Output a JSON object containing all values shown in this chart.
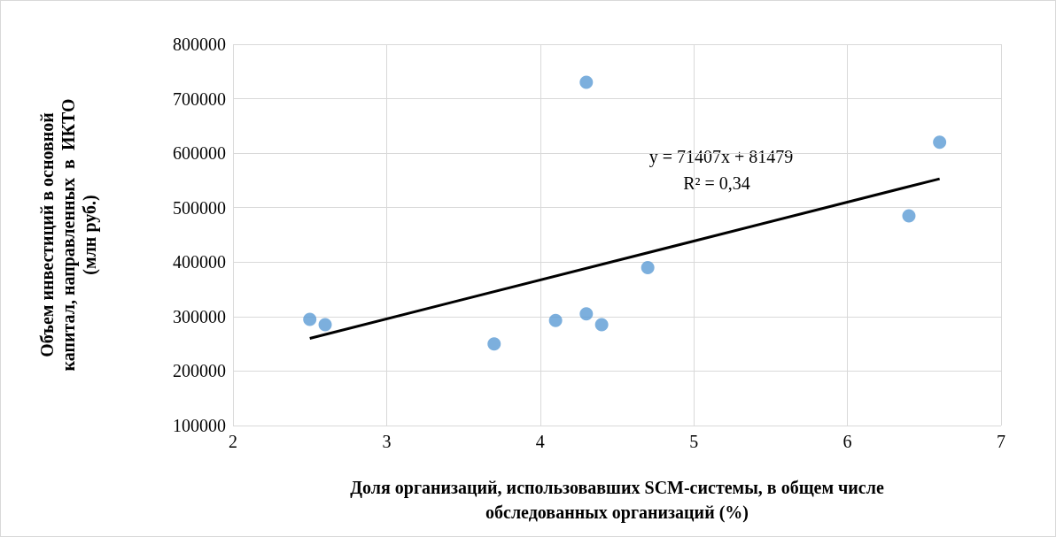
{
  "chart_data": {
    "type": "scatter",
    "xlabel": "Доля организаций, использовавших SCM-системы, в общем числе обследованных организаций (%)",
    "ylabel": "Объем инвестиций в основной капитал, направленных  в  ИКТО (млн руб.)",
    "x": [
      2.5,
      2.6,
      3.7,
      4.1,
      4.3,
      4.3,
      4.4,
      4.7,
      6.4,
      6.6
    ],
    "series": [
      {
        "color": "#5b9bd5",
        "values": [
          295000,
          285000,
          250000,
          293000,
          730000,
          305000,
          285000,
          390000,
          485000,
          620000
        ]
      },
      {
        "type": "line",
        "color": "#000000",
        "x": [
          2.5,
          6.6
        ],
        "values": [
          260000,
          553000
        ],
        "marker": "none"
      }
    ],
    "xlim": [
      2,
      7
    ],
    "xticks": [
      2,
      3,
      4,
      5,
      6,
      7
    ],
    "ylim": [
      100000,
      800000
    ],
    "yticks": [
      100000,
      200000,
      300000,
      400000,
      500000,
      600000,
      700000,
      800000
    ],
    "grid": true,
    "marker": "circle",
    "annotations": [
      "y = 71407x + 81479",
      "R² = 0,34"
    ]
  }
}
